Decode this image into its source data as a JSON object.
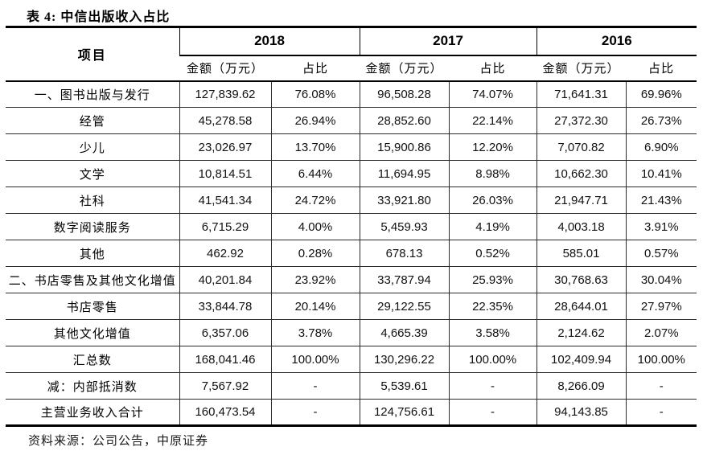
{
  "title": "表 4: 中信出版收入占比",
  "source_note": "资料来源：公司公告，中原证券",
  "table": {
    "item_header": "项目",
    "year_groups": [
      {
        "year": "2018",
        "amount_header": "金额（万元）",
        "share_header": "占比"
      },
      {
        "year": "2017",
        "amount_header": "金额（万元）",
        "share_header": "占比"
      },
      {
        "year": "2016",
        "amount_header": "金额（万元）",
        "share_header": "占比"
      }
    ],
    "rows": [
      {
        "item": "一、图书出版与发行",
        "values": [
          "127,839.62",
          "76.08%",
          "96,508.28",
          "74.07%",
          "71,641.31",
          "69.96%"
        ]
      },
      {
        "item": "经管",
        "values": [
          "45,278.58",
          "26.94%",
          "28,852.60",
          "22.14%",
          "27,372.30",
          "26.73%"
        ]
      },
      {
        "item": "少儿",
        "values": [
          "23,026.97",
          "13.70%",
          "15,900.86",
          "12.20%",
          "7,070.82",
          "6.90%"
        ]
      },
      {
        "item": "文学",
        "values": [
          "10,814.51",
          "6.44%",
          "11,694.95",
          "8.98%",
          "10,662.30",
          "10.41%"
        ]
      },
      {
        "item": "社科",
        "values": [
          "41,541.34",
          "24.72%",
          "33,921.80",
          "26.03%",
          "21,947.71",
          "21.43%"
        ]
      },
      {
        "item": "数字阅读服务",
        "values": [
          "6,715.29",
          "4.00%",
          "5,459.93",
          "4.19%",
          "4,003.18",
          "3.91%"
        ]
      },
      {
        "item": "其他",
        "values": [
          "462.92",
          "0.28%",
          "678.13",
          "0.52%",
          "585.01",
          "0.57%"
        ]
      },
      {
        "item": "二、书店零售及其他文化增值",
        "values": [
          "40,201.84",
          "23.92%",
          "33,787.94",
          "25.93%",
          "30,768.63",
          "30.04%"
        ]
      },
      {
        "item": "书店零售",
        "values": [
          "33,844.78",
          "20.14%",
          "29,122.55",
          "22.35%",
          "28,644.01",
          "27.97%"
        ]
      },
      {
        "item": "其他文化增值",
        "values": [
          "6,357.06",
          "3.78%",
          "4,665.39",
          "3.58%",
          "2,124.62",
          "2.07%"
        ]
      },
      {
        "item": "汇总数",
        "values": [
          "168,041.46",
          "100.00%",
          "130,296.22",
          "100.00%",
          "102,409.94",
          "100.00%"
        ]
      },
      {
        "item": "减：内部抵消数",
        "values": [
          "7,567.92",
          "-",
          "5,539.61",
          "-",
          "8,266.09",
          "-"
        ]
      },
      {
        "item": "主营业务收入合计",
        "values": [
          "160,473.54",
          "-",
          "124,756.61",
          "-",
          "94,143.85",
          "-"
        ]
      }
    ]
  }
}
